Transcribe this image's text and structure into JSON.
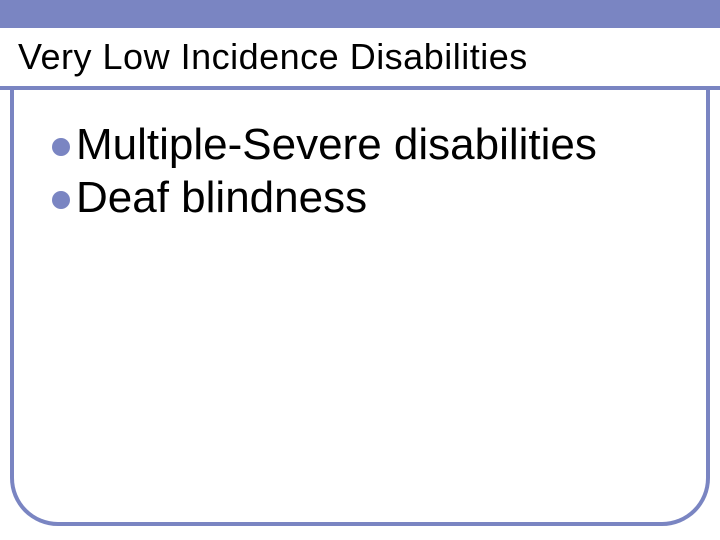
{
  "slide": {
    "title": "Very Low Incidence Disabilities",
    "title_fontsize": 36,
    "title_color": "#000000",
    "band_color": "#7a85c2",
    "underline_color": "#7a85c2",
    "frame_border_color": "#7a85c2",
    "background_color": "#ffffff",
    "bullets": [
      {
        "text": "Multiple-Severe disabilities"
      },
      {
        "text": "Deaf blindness"
      }
    ],
    "bullet_color": "#7a85c2",
    "bullet_text_color": "#000000",
    "bullet_fontsize": 44,
    "frame_border_radius": 48
  }
}
